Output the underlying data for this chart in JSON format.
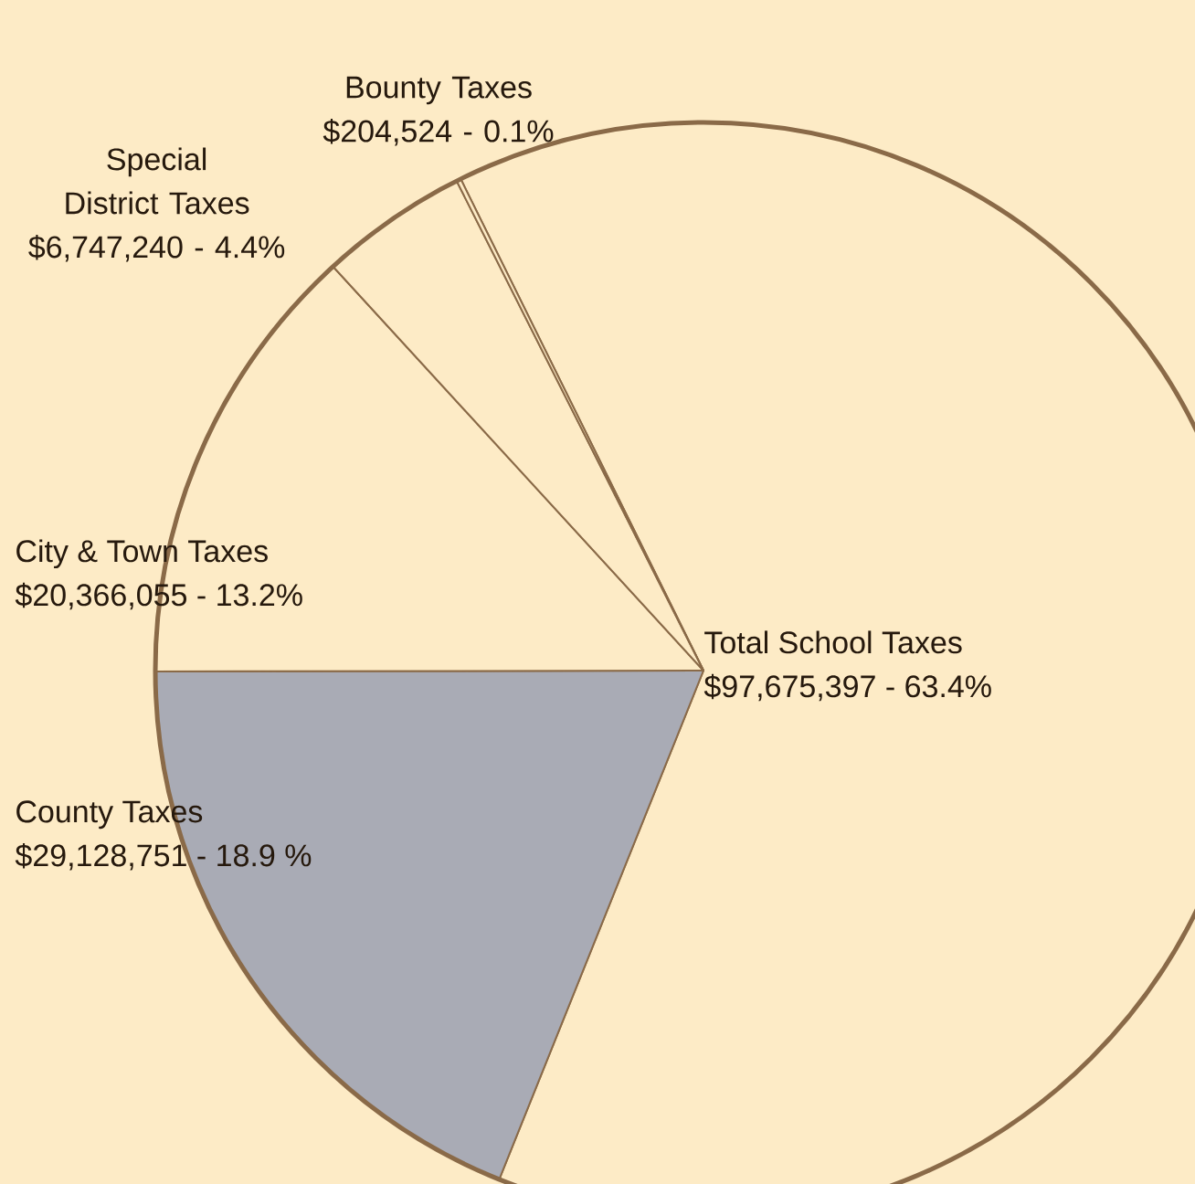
{
  "chart_data": {
    "type": "pie",
    "categories": [
      "Total School Taxes",
      "County Taxes",
      "City & Town Taxes",
      "Special District Taxes",
      "Bounty Taxes"
    ],
    "values": [
      97675397,
      29128751,
      20366055,
      6747240,
      204524
    ],
    "value_labels": [
      "$97,675,397 - 63.4%",
      "$29,128,751 - 18.9 %",
      "$20,366,055 - 13.2%",
      "$6,747,240 - 4.4%",
      "$204,524 - 0.1%"
    ],
    "colors": [
      "#fdebc6",
      "#a9abb5",
      "#fdebc6",
      "#fdebc6",
      "#fdebc6"
    ]
  }
}
